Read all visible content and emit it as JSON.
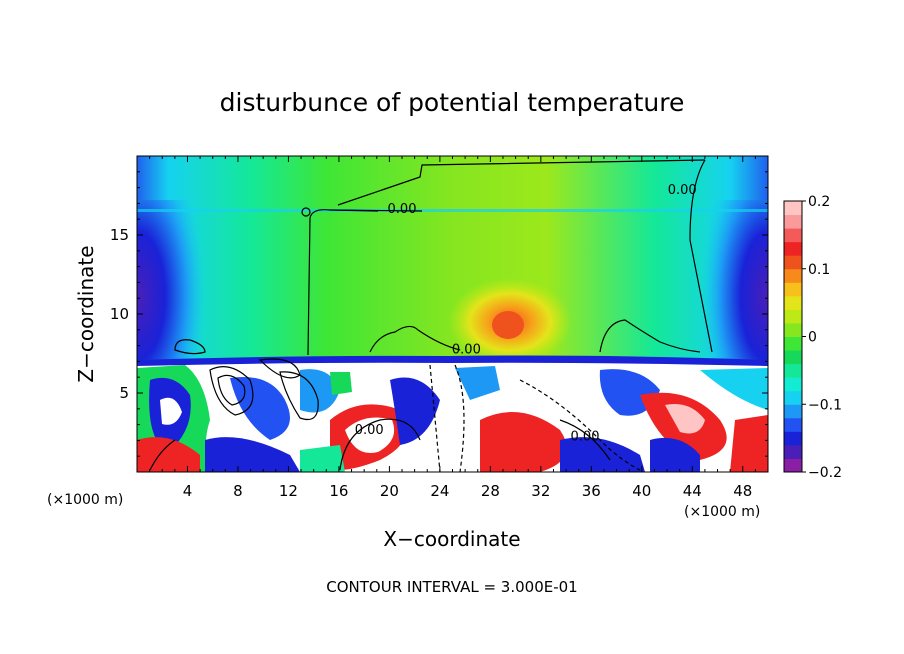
{
  "chart_data": {
    "type": "heatmap",
    "title": "disturbunce of potential temperature",
    "xlabel": "X−coordinate",
    "ylabel": "Z−coordinate",
    "x_unit": "(×1000 m)",
    "x_unit_right": "(×1000 m)",
    "xlim": [
      0,
      50
    ],
    "ylim": [
      0,
      20
    ],
    "x_ticks": [
      4,
      8,
      12,
      16,
      20,
      24,
      28,
      32,
      36,
      40,
      44,
      48
    ],
    "y_ticks": [
      5,
      10,
      15
    ],
    "colorbar": {
      "min": -0.2,
      "max": 0.2,
      "ticks": [
        0.2,
        0.1,
        0,
        -0.1,
        -0.2
      ],
      "tick_labels": [
        "0.2",
        "0.1",
        "0",
        "−0.1",
        "−0.2"
      ],
      "colors": [
        "#8a1fa3",
        "#4a1fb8",
        "#1a22d8",
        "#2252f2",
        "#1d98f5",
        "#16d2f0",
        "#12ecd2",
        "#14e898",
        "#16d95a",
        "#3ee636",
        "#86e620",
        "#bdea16",
        "#e4e41a",
        "#f7c01a",
        "#f78a1a",
        "#f0521e",
        "#ee2424",
        "#f55a5a",
        "#fa9a9a",
        "#ffc4c4"
      ]
    },
    "contour_labels": [
      {
        "text": "0.00",
        "x": 21.0,
        "y": 16.4
      },
      {
        "text": "0.00",
        "x": 43.2,
        "y": 17.6
      },
      {
        "text": "0.00",
        "x": 26.1,
        "y": 7.5
      },
      {
        "text": "0.00",
        "x": 18.4,
        "y": 2.4
      },
      {
        "text": "0.00",
        "x": 35.5,
        "y": 2.0
      }
    ],
    "annotation": "CONTOUR INTERVAL = 3.000E-01"
  }
}
